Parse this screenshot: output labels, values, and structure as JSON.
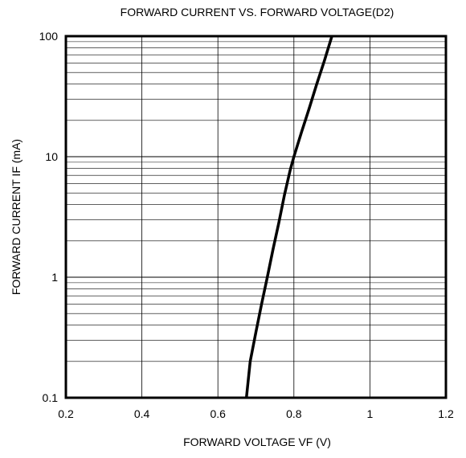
{
  "chart_data": {
    "type": "line",
    "title": "FORWARD CURRENT VS. FORWARD VOLTAGE(D2)",
    "xlabel": "FORWARD VOLTAGE VF (V)",
    "ylabel": "FORWARD CURRENT IF (mA)",
    "xlim": [
      0.2,
      1.2
    ],
    "ylim": [
      0.1,
      100
    ],
    "yscale": "log",
    "grid": true,
    "x_ticks": [
      0.2,
      0.4,
      0.6,
      0.8,
      1.0,
      1.2
    ],
    "x_tick_labels": [
      "0.2",
      "0.4",
      "0.6",
      "0.8",
      "1",
      "1.2"
    ],
    "y_ticks": [
      0.1,
      1,
      10,
      100
    ],
    "y_tick_labels": [
      "0.1",
      "1",
      "10",
      "100"
    ],
    "series": [
      {
        "x": [
          0.675,
          0.685,
          0.7,
          0.715,
          0.73,
          0.745,
          0.76,
          0.775,
          0.79,
          0.8,
          0.82,
          0.84,
          0.86,
          0.88,
          0.9
        ],
        "y": [
          0.1,
          0.2,
          0.35,
          0.6,
          1.0,
          1.7,
          2.8,
          4.8,
          7.7,
          10,
          16,
          25,
          40,
          62,
          100
        ]
      }
    ],
    "colors": {
      "curve": "#000000",
      "grid": "#000000",
      "frame": "#000000"
    }
  }
}
